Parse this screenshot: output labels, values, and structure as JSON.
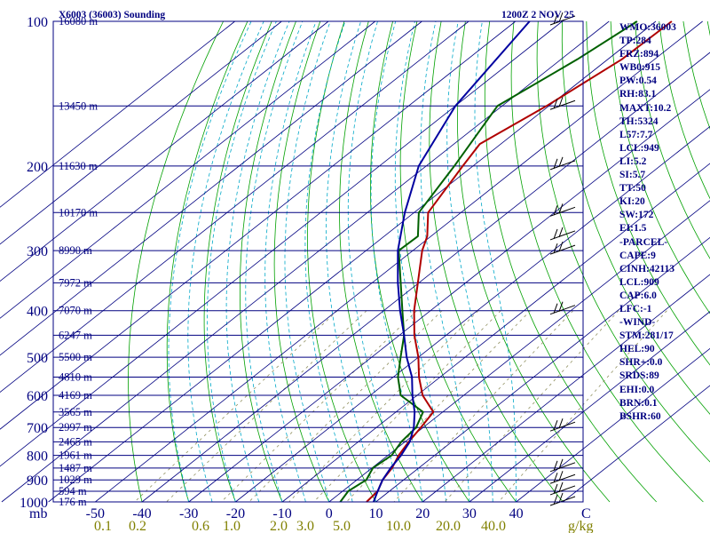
{
  "chart_data": {
    "type": "line",
    "title": "X6003 (36003) Sounding",
    "valid_time": "1200Z  2 NOV 25",
    "y_axis_label": "mb",
    "x_axis_label": "C",
    "mixing_ratio_unit": "g/kg",
    "pressure_levels": [
      100,
      200,
      300,
      400,
      500,
      600,
      700,
      800,
      900,
      1000
    ],
    "temperature_ticks": [
      -50,
      -40,
      -30,
      -20,
      -10,
      0,
      10,
      20,
      30,
      40
    ],
    "mixing_ratio_ticks": [
      {
        "label": "0.1",
        "value": 0.1
      },
      {
        "label": "0.2",
        "value": 0.2
      },
      {
        "label": "0.6",
        "value": 0.6
      },
      {
        "label": "1.0",
        "value": 1.0
      },
      {
        "label": "2.0",
        "value": 2.0
      },
      {
        "label": "3.0",
        "value": 3.0
      },
      {
        "label": "5.0",
        "value": 5.0
      },
      {
        "label": "10.0",
        "value": 10.0
      },
      {
        "label": "20.0",
        "value": 20.0
      },
      {
        "label": "40.0",
        "value": 40.0
      }
    ],
    "height_labels": [
      {
        "p": 100,
        "label": "16080 m"
      },
      {
        "p": 150,
        "label": "13450 m"
      },
      {
        "p": 200,
        "label": "11630 m"
      },
      {
        "p": 250,
        "label": "10170 m"
      },
      {
        "p": 300,
        "label": "8990 m"
      },
      {
        "p": 350,
        "label": "7972 m"
      },
      {
        "p": 400,
        "label": "7070 m"
      },
      {
        "p": 450,
        "label": "6247 m"
      },
      {
        "p": 500,
        "label": "5500 m"
      },
      {
        "p": 550,
        "label": "4810 m"
      },
      {
        "p": 600,
        "label": "4169 m"
      },
      {
        "p": 650,
        "label": "3565 m"
      },
      {
        "p": 700,
        "label": "2997 m"
      },
      {
        "p": 750,
        "label": "2465 m"
      },
      {
        "p": 800,
        "label": "1961 m"
      },
      {
        "p": 850,
        "label": "1487 m"
      },
      {
        "p": 900,
        "label": "1029 m"
      },
      {
        "p": 950,
        "label": "594 m"
      },
      {
        "p": 1000,
        "label": "176 m"
      }
    ],
    "series": [
      {
        "name": "Temperature",
        "color": "#b00000",
        "points": [
          {
            "p": 100,
            "t": -56.6
          },
          {
            "p": 120,
            "t": -57.0
          },
          {
            "p": 150,
            "t": -60.5
          },
          {
            "p": 180,
            "t": -64.5
          },
          {
            "p": 200,
            "t": -62.2
          },
          {
            "p": 250,
            "t": -57.0
          },
          {
            "p": 280,
            "t": -50.8
          },
          {
            "p": 300,
            "t": -48.0
          },
          {
            "p": 400,
            "t": -33.5
          },
          {
            "p": 450,
            "t": -26.8
          },
          {
            "p": 500,
            "t": -20.0
          },
          {
            "p": 550,
            "t": -14.5
          },
          {
            "p": 600,
            "t": -8.8
          },
          {
            "p": 650,
            "t": -2.0
          },
          {
            "p": 700,
            "t": -0.5
          },
          {
            "p": 750,
            "t": 0.8
          },
          {
            "p": 800,
            "t": 2.3
          },
          {
            "p": 850,
            "t": 4.3
          },
          {
            "p": 900,
            "t": 5.5
          },
          {
            "p": 950,
            "t": 7.5
          },
          {
            "p": 1000,
            "t": 8.0
          }
        ]
      },
      {
        "name": "Dewpoint",
        "color": "#006000",
        "points": [
          {
            "p": 100,
            "t": -64.0
          },
          {
            "p": 120,
            "t": -66.5
          },
          {
            "p": 150,
            "t": -71.0
          },
          {
            "p": 200,
            "t": -64.0
          },
          {
            "p": 250,
            "t": -59.0
          },
          {
            "p": 280,
            "t": -52.8
          },
          {
            "p": 300,
            "t": -53.0
          },
          {
            "p": 400,
            "t": -36.0
          },
          {
            "p": 450,
            "t": -29.0
          },
          {
            "p": 500,
            "t": -23.8
          },
          {
            "p": 550,
            "t": -19.0
          },
          {
            "p": 600,
            "t": -13.5
          },
          {
            "p": 650,
            "t": -4.2
          },
          {
            "p": 700,
            "t": -1.5
          },
          {
            "p": 750,
            "t": -0.8
          },
          {
            "p": 800,
            "t": 0.8
          },
          {
            "p": 850,
            "t": 0.2
          },
          {
            "p": 900,
            "t": 2.0
          },
          {
            "p": 950,
            "t": 1.2
          },
          {
            "p": 1000,
            "t": 2.4
          }
        ]
      },
      {
        "name": "Parcel",
        "color": "#0000a0",
        "points": [
          {
            "p": 100,
            "t": -87.0
          },
          {
            "p": 150,
            "t": -80.0
          },
          {
            "p": 200,
            "t": -71.6
          },
          {
            "p": 250,
            "t": -62.0
          },
          {
            "p": 300,
            "t": -53.2
          },
          {
            "p": 350,
            "t": -44.5
          },
          {
            "p": 400,
            "t": -36.5
          },
          {
            "p": 450,
            "t": -29.0
          },
          {
            "p": 500,
            "t": -22.5
          },
          {
            "p": 550,
            "t": -16.0
          },
          {
            "p": 600,
            "t": -11.0
          },
          {
            "p": 650,
            "t": -6.0
          },
          {
            "p": 700,
            "t": -2.0
          },
          {
            "p": 750,
            "t": 1.0
          },
          {
            "p": 800,
            "t": 2.8
          },
          {
            "p": 850,
            "t": 4.0
          },
          {
            "p": 900,
            "t": 5.5
          },
          {
            "p": 950,
            "t": 7.5
          },
          {
            "p": 1000,
            "t": 9.5
          }
        ]
      }
    ]
  },
  "stats": [
    "WMO:36003",
    "TP:284",
    "FRZ:894",
    "WB0:915",
    "PW:0.54",
    "RH:83.1",
    "MAXT:10.2",
    "TH:5324",
    "L57:7.7",
    "LCL:949",
    "LI:5.2",
    "SI:5.7",
    "TT:50",
    "KI:20",
    "SW:172",
    "EI:1.5",
    "-PARCEL-",
    "CAPE:9",
    "CINH:42113",
    "LCL:909",
    "CAP:6.0",
    "LFC:-1",
    "-WIND-",
    "STM:281/17",
    "HEL:90",
    "SHR+:0.0",
    "SRDS:89",
    "EHI:0.0",
    "BRN:0.1",
    "BSHR:60"
  ],
  "colors": {
    "isobar": "#000080",
    "isotherm": "#000080",
    "dry_adiabat": "#00a000",
    "moist_adiabat": "#00a8c8",
    "mixing_ratio": "#909060",
    "wind_barb": "#000000",
    "text": "#000080",
    "mixing_label": "#808000"
  }
}
